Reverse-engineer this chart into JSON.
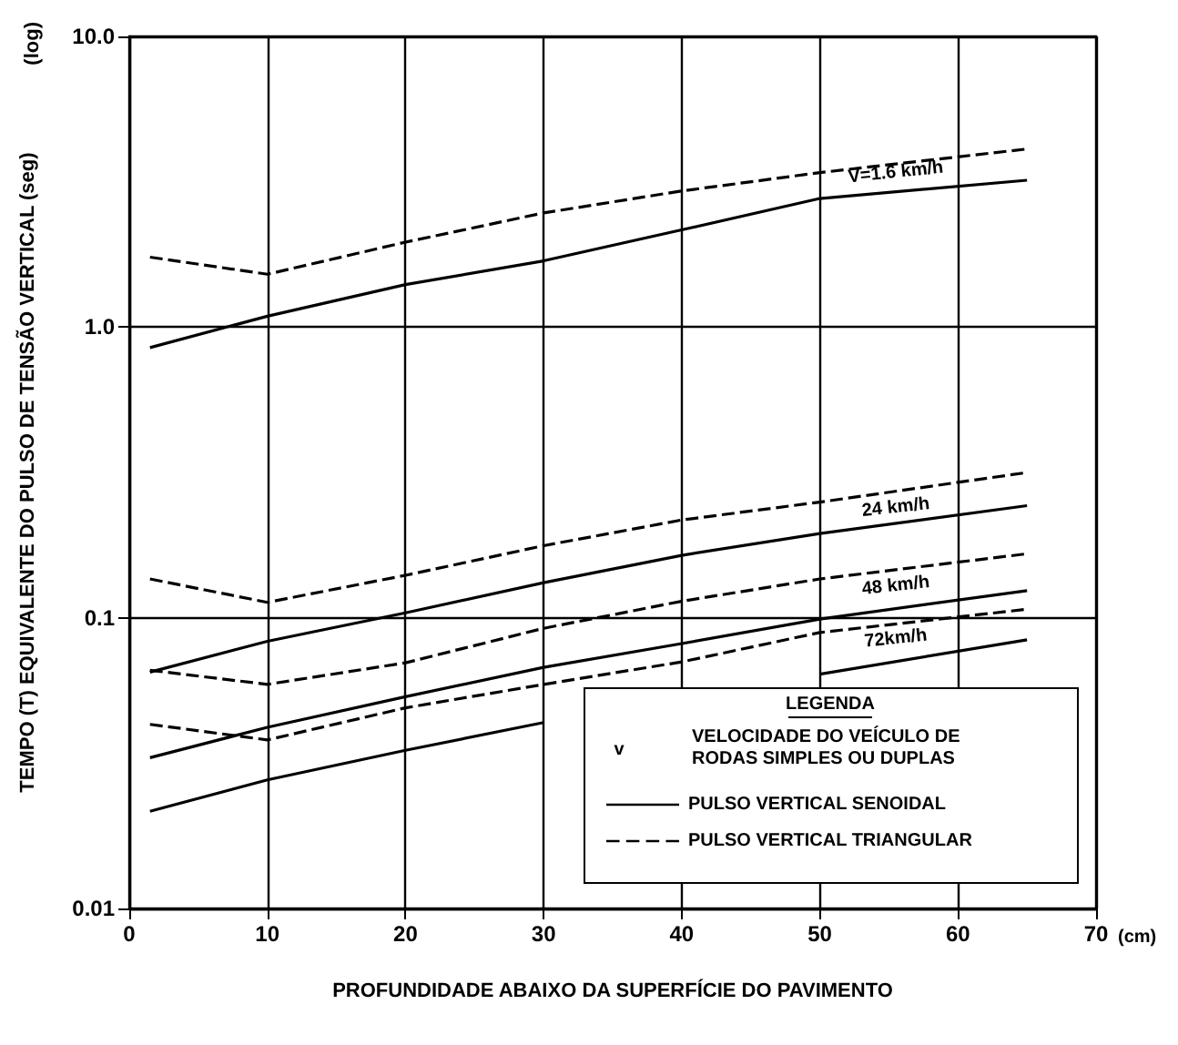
{
  "chart_data": {
    "type": "line",
    "xlabel": "PROFUNDIDADE ABAIXO DA SUPERFÍCIE DO PAVIMENTO",
    "ylabel": "TEMPO (T) EQUIVALENTE DO PULSO DE TENSÃO VERTICAL (seg)",
    "legend_title": "LEGENDA",
    "x": [
      1.5,
      10,
      20,
      30,
      40,
      50,
      65
    ],
    "series": [
      {
        "name": "PULSO VERTICAL SENOIDAL",
        "color": "#000000",
        "line_style": "solid",
        "values": [
          0.85,
          1.09,
          1.4,
          1.69,
          2.16,
          2.77,
          3.2
        ]
      },
      {
        "name": "PULSO VERTICAL TRIANGULAR",
        "color": "#000000",
        "line_style": "dashed",
        "values": [
          1.74,
          1.52,
          1.96,
          2.47,
          2.94,
          3.4,
          4.1
        ]
      },
      {
        "color": "#000000",
        "line_style": "solid",
        "values": [
          0.065,
          0.083,
          0.104,
          0.132,
          0.164,
          0.195,
          0.243
        ]
      },
      {
        "color": "#000000",
        "line_style": "dashed",
        "values": [
          0.136,
          0.113,
          0.14,
          0.177,
          0.217,
          0.25,
          0.316
        ]
      },
      {
        "color": "#000000",
        "line_style": "solid",
        "values": [
          0.033,
          0.042,
          0.0535,
          0.0675,
          0.0815,
          0.099,
          0.124
        ]
      },
      {
        "color": "#000000",
        "line_style": "dashed",
        "values": [
          0.066,
          0.059,
          0.07,
          0.092,
          0.114,
          0.136,
          0.166
        ]
      },
      {
        "color": "#000000",
        "line_style": "solid",
        "values": [
          0.0216,
          0.0277,
          0.035,
          0.0436,
          null,
          0.064,
          0.084
        ]
      },
      {
        "color": "#000000",
        "line_style": "dashed",
        "values": [
          0.043,
          0.038,
          0.049,
          0.059,
          0.0705,
          0.089,
          0.107
        ]
      }
    ],
    "xlim": [
      0,
      70
    ],
    "xticks": [
      0,
      10,
      20,
      30,
      40,
      50,
      60,
      70
    ],
    "ylim": [
      0.01,
      10
    ],
    "yticks": [
      0.01,
      0.1,
      {
        "value": 1,
        "label": "1.0"
      },
      {
        "value": 10,
        "label": "10.0"
      }
    ],
    "log": "y",
    "grid": true,
    "legend": "bottom right",
    "marker": "none",
    "annotations": [
      "V=1.6 km/h",
      "24 km/h",
      "48 km/h",
      "72km/h",
      "(log)",
      "(cm)",
      "v",
      "VELOCIDADE DO VEÍCULO DE\nRODAS SIMPLES OU DUPLAS"
    ]
  }
}
